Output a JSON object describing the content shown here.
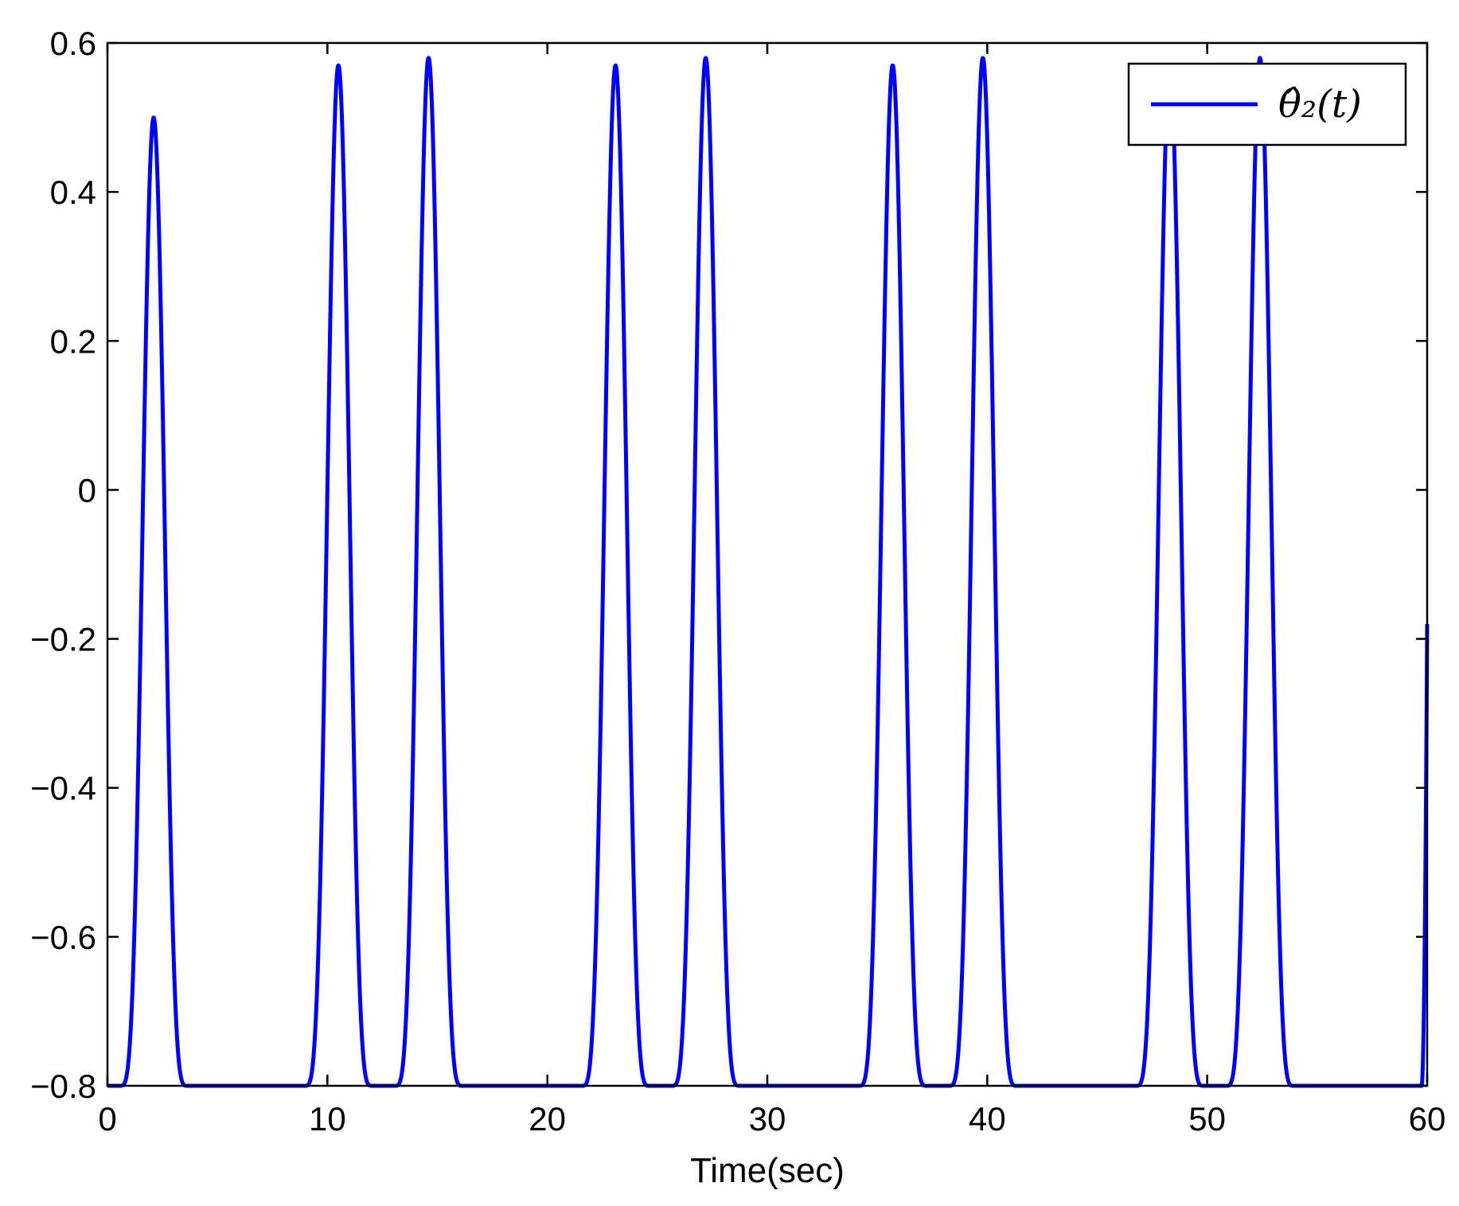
{
  "chart_data": {
    "type": "line",
    "title": "",
    "xlabel": "Time(sec)",
    "ylabel": "",
    "xlim": [
      0,
      60
    ],
    "ylim": [
      -0.8,
      0.6
    ],
    "xticks": [
      0,
      10,
      20,
      30,
      40,
      50,
      60
    ],
    "xtick_labels": [
      "0",
      "10",
      "20",
      "30",
      "40",
      "50",
      "60"
    ],
    "yticks": [
      -0.8,
      -0.6,
      -0.4,
      -0.2,
      0,
      0.2,
      0.4,
      0.6
    ],
    "ytick_labels": [
      "−0.8",
      "−0.6",
      "−0.4",
      "−0.2",
      "0",
      "0.2",
      "0.4",
      "0.6"
    ],
    "grid": false,
    "legend": {
      "position": "top-right",
      "entries": [
        "θ̂₂(t)"
      ]
    },
    "series": [
      {
        "name": "θ̂₂(t)",
        "color": "#0000ff",
        "baseline": -0.8,
        "peaks": [
          {
            "t": 2.1,
            "value": 0.5
          },
          {
            "t": 10.5,
            "value": 0.57
          },
          {
            "t": 14.6,
            "value": 0.58
          },
          {
            "t": 23.1,
            "value": 0.57
          },
          {
            "t": 27.2,
            "value": 0.58
          },
          {
            "t": 35.7,
            "value": 0.57
          },
          {
            "t": 39.8,
            "value": 0.58
          },
          {
            "t": 48.3,
            "value": 0.57
          },
          {
            "t": 52.4,
            "value": 0.58
          }
        ],
        "end_point": {
          "t": 60,
          "value": -0.18
        }
      }
    ]
  }
}
